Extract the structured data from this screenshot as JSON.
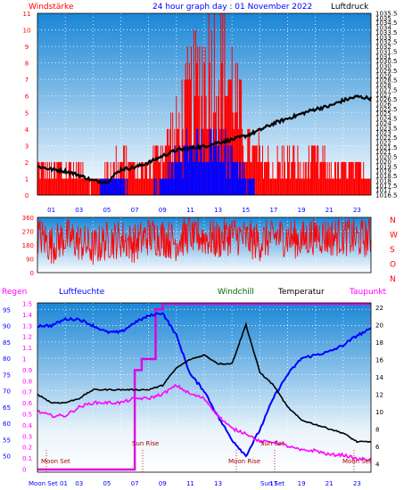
{
  "colors": {
    "red": "#ff0000",
    "blue": "#0000ff",
    "black": "#000000",
    "green": "#006400",
    "magenta": "#ff00ff",
    "darkred": "#aa0000",
    "bg_top": "#1f90d8",
    "bg_bottom": "#ffffff"
  },
  "chart_data": [
    {
      "type": "line",
      "name": "wind-pressure-panel",
      "title": "24 hour graph day : 01 November 2022",
      "left_label": "Windstärke",
      "right_label": "Luftdruck",
      "x_ticks": [
        "01",
        "03",
        "05",
        "07",
        "09",
        "11",
        "13",
        "15",
        "17",
        "19",
        "21",
        "23"
      ],
      "y_left_ticks": [
        "0",
        "1",
        "2",
        "3",
        "4",
        "5",
        "6",
        "7",
        "8",
        "9",
        "10",
        "11"
      ],
      "y_left_range": [
        0,
        11
      ],
      "y_right_ticks": [
        "1016.5",
        "1017",
        "1017.5",
        "1018",
        "1018.5",
        "1019",
        "1019.5",
        "1020",
        "1020.5",
        "1021",
        "1021.5",
        "1022",
        "1022.5",
        "1023",
        "1023.5",
        "1024",
        "1024.5",
        "1025",
        "1025.5",
        "1026",
        "1026.5",
        "1027",
        "1027.5",
        "1028",
        "1028.5",
        "1029",
        "1029.5",
        "1030",
        "1030.5",
        "1031",
        "1031.5",
        "1032",
        "1032.5",
        "1033",
        "1033.5",
        "1034",
        "1034.5",
        "1035",
        "1035.5"
      ],
      "y_right_range": [
        1016.5,
        1035.5
      ],
      "series": [
        {
          "key": "pressure",
          "color": "#000000",
          "x": [
            0,
            1,
            2,
            3,
            4,
            5,
            6,
            7,
            8,
            9,
            10,
            11,
            12,
            13,
            14,
            15,
            16,
            17,
            18,
            19,
            20,
            21,
            22,
            23,
            24
          ],
          "values": [
            1019.5,
            1019.2,
            1019.0,
            1018.6,
            1018.0,
            1017.9,
            1019.2,
            1019.4,
            1019.9,
            1020.6,
            1021.2,
            1021.4,
            1021.6,
            1022.0,
            1022.3,
            1022.7,
            1023.3,
            1024.0,
            1024.5,
            1025.0,
            1025.5,
            1025.8,
            1026.4,
            1026.8,
            1026.6
          ]
        },
        {
          "key": "wind_gust",
          "color": "#ff0000",
          "x": [
            0,
            1,
            2,
            3,
            4,
            5,
            6,
            7,
            8,
            9,
            10,
            11,
            12,
            13,
            14,
            15,
            16,
            17,
            18,
            19,
            20,
            21,
            22,
            23,
            24
          ],
          "values": [
            2,
            2,
            2,
            2,
            1,
            2,
            3,
            2,
            2,
            4,
            5,
            8,
            10,
            11,
            9,
            4,
            3,
            2,
            3,
            2,
            3,
            2,
            2,
            2,
            2
          ]
        },
        {
          "key": "wind_avg",
          "color": "#0000ff",
          "x": [
            0,
            1,
            2,
            3,
            4,
            5,
            6,
            7,
            8,
            9,
            10,
            11,
            12,
            13,
            14,
            15,
            16,
            17,
            18,
            19,
            20,
            21,
            22,
            23,
            24
          ],
          "values": [
            0,
            0,
            0,
            0,
            0,
            1,
            1,
            0,
            0,
            1,
            2,
            3,
            3,
            3,
            2,
            1,
            0,
            0,
            0,
            0,
            0,
            0,
            0,
            0,
            0
          ]
        }
      ]
    },
    {
      "type": "line",
      "name": "wind-direction-panel",
      "y_left_ticks": [
        "0",
        "90",
        "180",
        "270",
        "360"
      ],
      "y_left_range": [
        0,
        360
      ],
      "y_right_ticks": [
        "N",
        "W",
        "S",
        "O",
        "N"
      ],
      "series": [
        {
          "key": "direction",
          "color": "#ff0000",
          "x": [
            0,
            1,
            2,
            3,
            4,
            5,
            6,
            7,
            8,
            9,
            10,
            11,
            12,
            13,
            14,
            15,
            16,
            17,
            18,
            19,
            20,
            21,
            22,
            23,
            24
          ],
          "values": [
            250,
            180,
            230,
            200,
            160,
            210,
            220,
            190,
            240,
            230,
            200,
            260,
            230,
            210,
            250,
            220,
            200,
            240,
            230,
            210,
            250,
            230,
            240,
            220,
            230
          ]
        }
      ]
    },
    {
      "type": "line",
      "name": "temp-humidity-panel",
      "header_labels": [
        "Regen",
        "Luftfeuchte",
        "Windchill",
        "Temperatur",
        "Taupunkt"
      ],
      "x_ticks": [
        "01",
        "03",
        "05",
        "07",
        "09",
        "11",
        "13",
        "15",
        "17",
        "19",
        "21",
        "23"
      ],
      "y_hum_ticks": [
        "50",
        "55",
        "60",
        "65",
        "70",
        "75",
        "80",
        "85",
        "90",
        "95"
      ],
      "y_hum_range": [
        45,
        97
      ],
      "y_rain_ticks": [
        "0",
        "0.1",
        "0.2",
        "0.3",
        "0.4",
        "0.5",
        "0.6",
        "0.7",
        "0.8",
        "0.9",
        "1",
        "1.1",
        "1.2",
        "1.3",
        "1.4",
        "1.5"
      ],
      "y_rain_range": [
        0,
        1.5
      ],
      "y_temp_ticks": [
        "4",
        "6",
        "8",
        "10",
        "12",
        "14",
        "16",
        "18",
        "20",
        "22"
      ],
      "y_temp_range": [
        3,
        22.5
      ],
      "annotations": [
        "Moon Set",
        "Sun Rise",
        "Moon Rise",
        "Sun Set",
        "Moon Set",
        "Moon Set 01",
        "Sun Set"
      ],
      "series": [
        {
          "key": "humidity",
          "color": "#0000ff",
          "x": [
            0,
            1,
            2,
            3,
            4,
            5,
            6,
            7,
            8,
            9,
            10,
            11,
            12,
            13,
            14,
            15,
            16,
            17,
            18,
            19,
            20,
            21,
            22,
            23,
            24
          ],
          "values": [
            90,
            90,
            92,
            92,
            90,
            88,
            88,
            91,
            93,
            94,
            87,
            75,
            70,
            62,
            55,
            50,
            58,
            68,
            75,
            80,
            81,
            82,
            84,
            87,
            89
          ]
        },
        {
          "key": "temperature",
          "color": "#000000",
          "x": [
            0,
            1,
            2,
            3,
            4,
            5,
            6,
            7,
            8,
            9,
            10,
            11,
            12,
            13,
            14,
            15,
            16,
            17,
            18,
            19,
            20,
            21,
            22,
            23,
            24
          ],
          "values": [
            12.0,
            11.0,
            11.0,
            11.5,
            12.5,
            12.5,
            12.5,
            12.5,
            12.5,
            13.0,
            15.0,
            16.0,
            16.5,
            15.5,
            15.5,
            20.0,
            14.5,
            13.0,
            10.5,
            9.0,
            8.5,
            8.0,
            7.5,
            6.5,
            6.5
          ]
        },
        {
          "key": "dewpoint",
          "color": "#ff00ff",
          "x": [
            0,
            1,
            2,
            3,
            4,
            5,
            6,
            7,
            8,
            9,
            10,
            11,
            12,
            13,
            14,
            15,
            16,
            17,
            18,
            19,
            20,
            21,
            22,
            23,
            24
          ],
          "values": [
            10.0,
            9.5,
            9.5,
            10.5,
            11.0,
            11.0,
            11.0,
            11.5,
            11.5,
            12.0,
            13.0,
            12.0,
            11.5,
            9.5,
            8.0,
            7.5,
            6.5,
            6.5,
            6.0,
            5.5,
            5.5,
            5.0,
            5.0,
            4.5,
            4.5
          ]
        },
        {
          "key": "rain",
          "color": "#ff00ff",
          "x": [
            0,
            1,
            2,
            3,
            4,
            5,
            6,
            6.5,
            7,
            7.5,
            8,
            8.5,
            9,
            10,
            11,
            12,
            13,
            14,
            15,
            16,
            17,
            18,
            19,
            20,
            21,
            22,
            23,
            24
          ],
          "values": [
            0,
            0,
            0,
            0,
            0,
            0,
            0,
            0,
            0.9,
            1.0,
            1.0,
            1.45,
            1.5,
            1.5,
            1.5,
            1.5,
            1.5,
            1.5,
            1.5,
            1.5,
            1.5,
            1.5,
            1.5,
            1.5,
            1.5,
            1.5,
            1.5,
            1.5
          ]
        }
      ]
    }
  ]
}
